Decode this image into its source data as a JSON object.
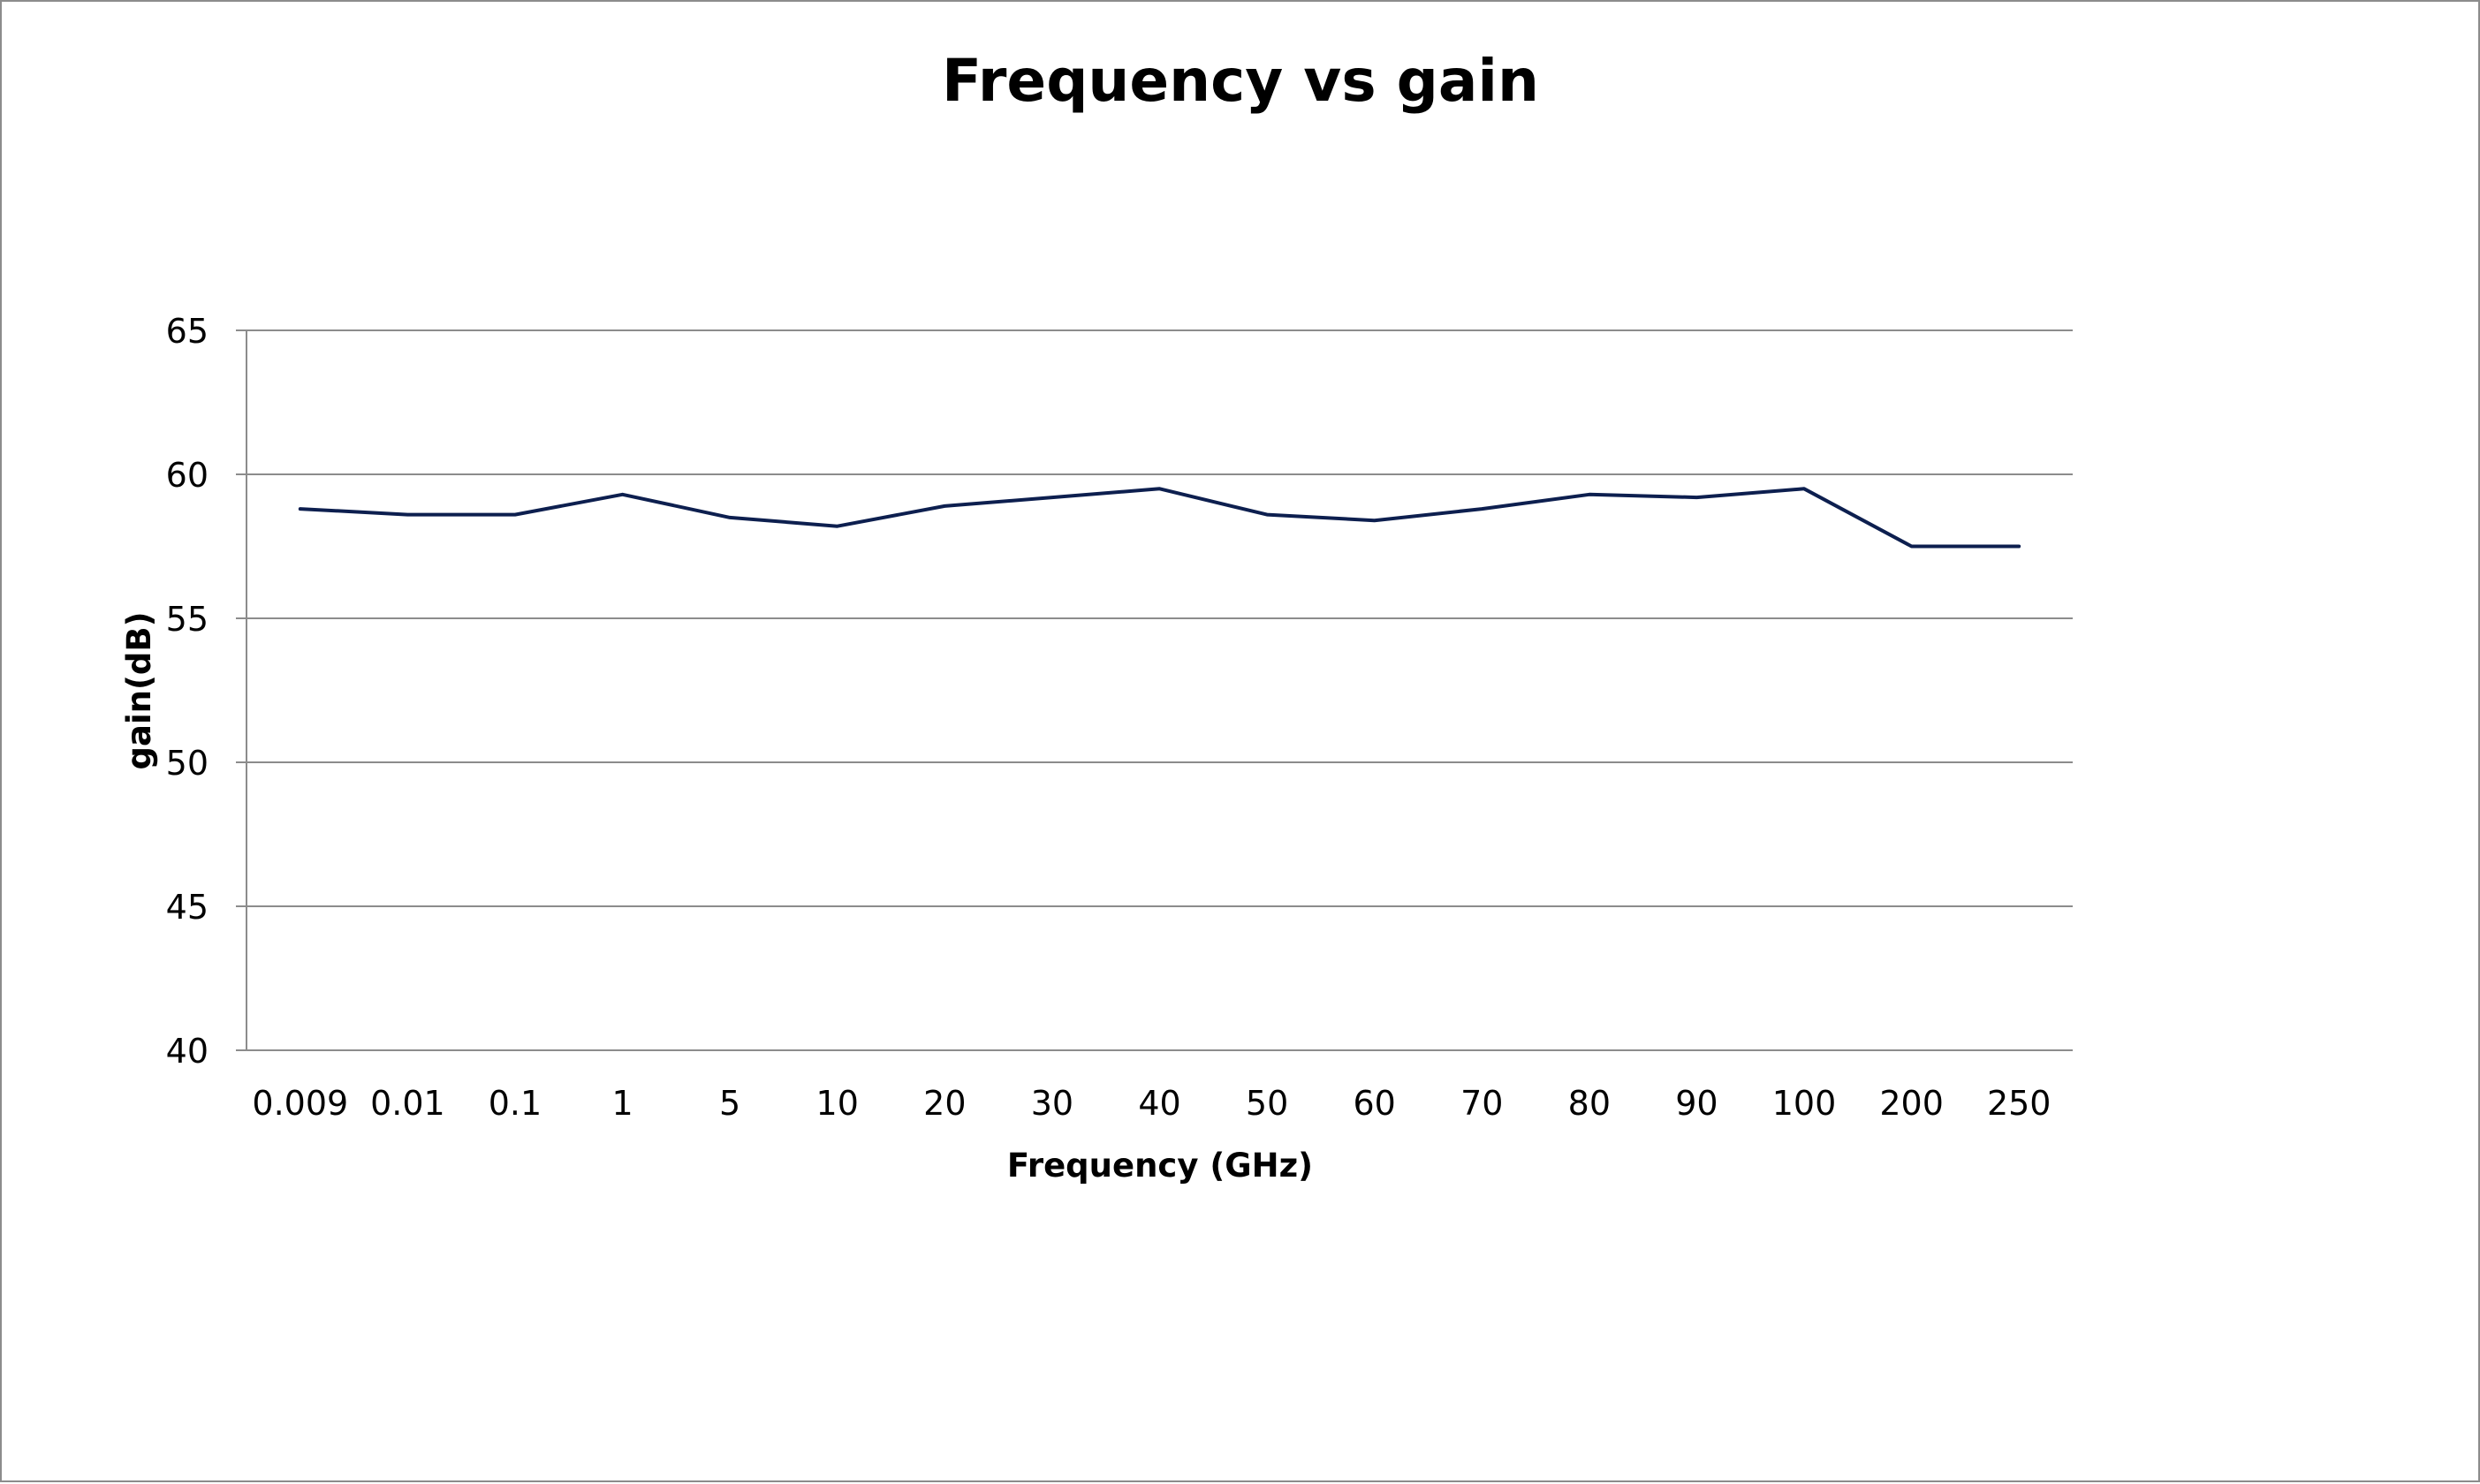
{
  "chart_data": {
    "type": "line",
    "title": "Frequency vs gain",
    "xlabel": "Frequency (GHz)",
    "ylabel": "gain(dB)",
    "categories": [
      "0.009",
      "0.01",
      "0.1",
      "1",
      "5",
      "10",
      "20",
      "30",
      "40",
      "50",
      "60",
      "70",
      "80",
      "90",
      "100",
      "200",
      "250"
    ],
    "series": [
      {
        "values": [
          58.8,
          58.6,
          58.6,
          59.3,
          58.5,
          58.2,
          58.9,
          59.2,
          59.5,
          58.6,
          58.4,
          58.8,
          59.3,
          59.2,
          59.5,
          57.5,
          57.5
        ],
        "color": "#0d1f4f"
      }
    ],
    "ylim": [
      40,
      65
    ],
    "yticks": [
      40,
      45,
      50,
      55,
      60,
      65
    ],
    "grid": true,
    "legend": "none"
  }
}
